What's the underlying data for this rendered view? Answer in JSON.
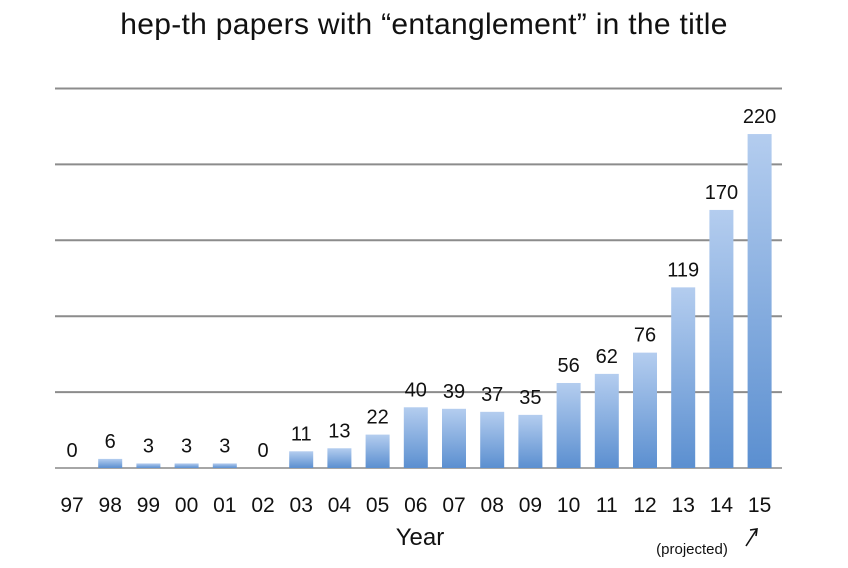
{
  "chart_data": {
    "type": "bar",
    "title": "hep-th papers with “entanglement” in the title",
    "xlabel": "Year",
    "ylabel": "",
    "ylim": [
      0,
      250
    ],
    "grid": true,
    "legend": "none",
    "bar_color": "#5b8fd0",
    "bar_color_light": "#b4cdef",
    "categories": [
      "97",
      "98",
      "99",
      "00",
      "01",
      "02",
      "03",
      "04",
      "05",
      "06",
      "07",
      "08",
      "09",
      "10",
      "11",
      "12",
      "13",
      "14",
      "15"
    ],
    "values": [
      0,
      6,
      3,
      3,
      3,
      0,
      11,
      13,
      22,
      40,
      39,
      37,
      35,
      56,
      62,
      76,
      119,
      170,
      220
    ],
    "data_labels": [
      "0",
      "6",
      "3",
      "3",
      "3",
      "0",
      "11",
      "13",
      "22",
      "40",
      "39",
      "37",
      "35",
      "56",
      "62",
      "76",
      "119",
      "170",
      "220"
    ],
    "annotation": "(projected)"
  }
}
